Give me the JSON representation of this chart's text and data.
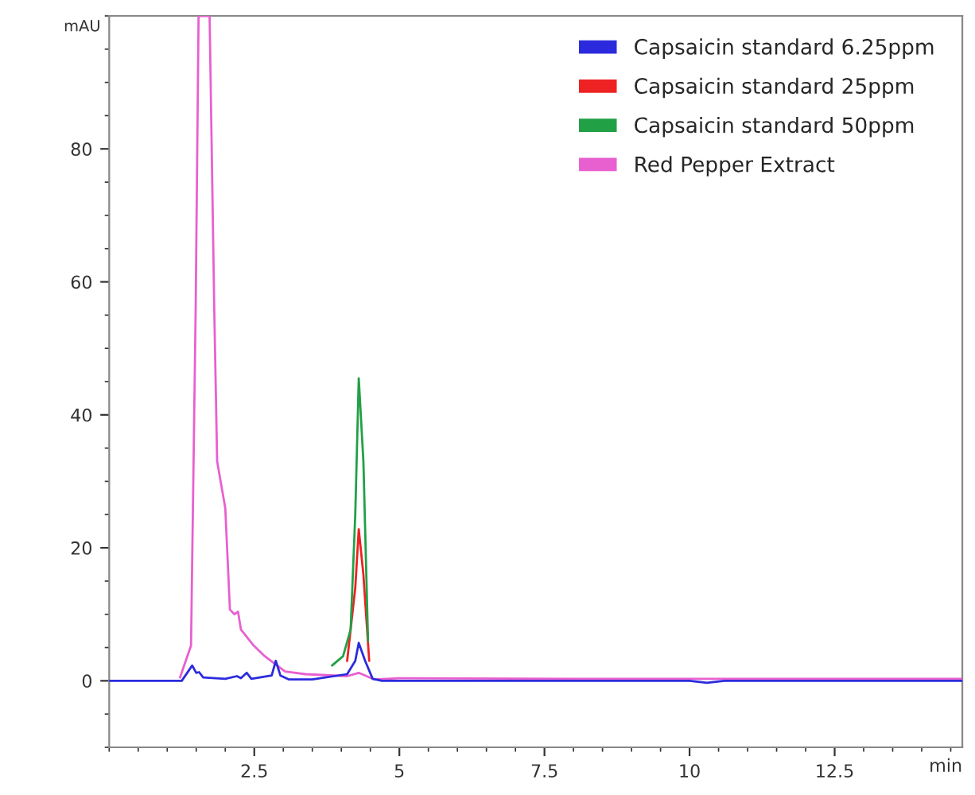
{
  "chart_data": {
    "type": "line",
    "xlabel": "min",
    "ylabel": "mAU",
    "xlim": [
      0,
      14.7
    ],
    "ylim": [
      -10,
      100
    ],
    "xticks": [
      2.5,
      5,
      7.5,
      10,
      12.5
    ],
    "yticks": [
      0,
      20,
      40,
      60,
      80
    ],
    "grid": false,
    "legend": "top right",
    "marker": "none",
    "line_style": "solid",
    "series": [
      {
        "name": "Capsaicin standard 6.25ppm",
        "color": "#2b2bdd",
        "x": [
          0,
          1.25,
          1.43,
          1.5,
          1.55,
          1.62,
          2.0,
          2.2,
          2.27,
          2.37,
          2.45,
          2.8,
          2.87,
          2.95,
          3.1,
          3.5,
          4.1,
          4.24,
          4.3,
          4.41,
          4.54,
          4.7,
          6,
          10.0,
          10.3,
          10.6,
          11,
          14.7
        ],
        "values": [
          0,
          0,
          2.3,
          1.2,
          1.3,
          0.5,
          0.3,
          0.7,
          0.4,
          1.2,
          0.3,
          0.8,
          3,
          0.8,
          0.2,
          0.2,
          1,
          3,
          5.7,
          3,
          0.3,
          0,
          0,
          0,
          -0.3,
          0,
          0,
          0
        ]
      },
      {
        "name": "Capsaicin standard 25ppm",
        "color": "#ee2222",
        "x": [
          4.1,
          4.24,
          4.3,
          4.38,
          4.48
        ],
        "values": [
          3,
          14,
          22.8,
          16,
          3
        ]
      },
      {
        "name": "Capsaicin standard 50ppm",
        "color": "#22a046",
        "x": [
          3.84,
          4.03,
          4.16,
          4.24,
          4.3,
          4.38,
          4.46
        ],
        "values": [
          2.3,
          3.7,
          7.7,
          25,
          45.5,
          33,
          6
        ]
      },
      {
        "name": "Red Pepper Extract",
        "color": "#e860d0",
        "x": [
          1.22,
          1.41,
          1.49,
          1.54,
          1.73,
          1.81,
          1.86,
          2.0,
          2.08,
          2.16,
          2.22,
          2.27,
          2.49,
          2.68,
          3.03,
          3.38,
          4.1,
          4.3,
          4.57,
          5.0,
          8,
          14.7
        ],
        "values": [
          0.5,
          5.3,
          56,
          100,
          100,
          56,
          33,
          26,
          10.7,
          10,
          10.4,
          7.7,
          5.3,
          3.7,
          1.4,
          1,
          0.7,
          1.2,
          0.2,
          0.4,
          0.3,
          0.3
        ]
      }
    ]
  }
}
